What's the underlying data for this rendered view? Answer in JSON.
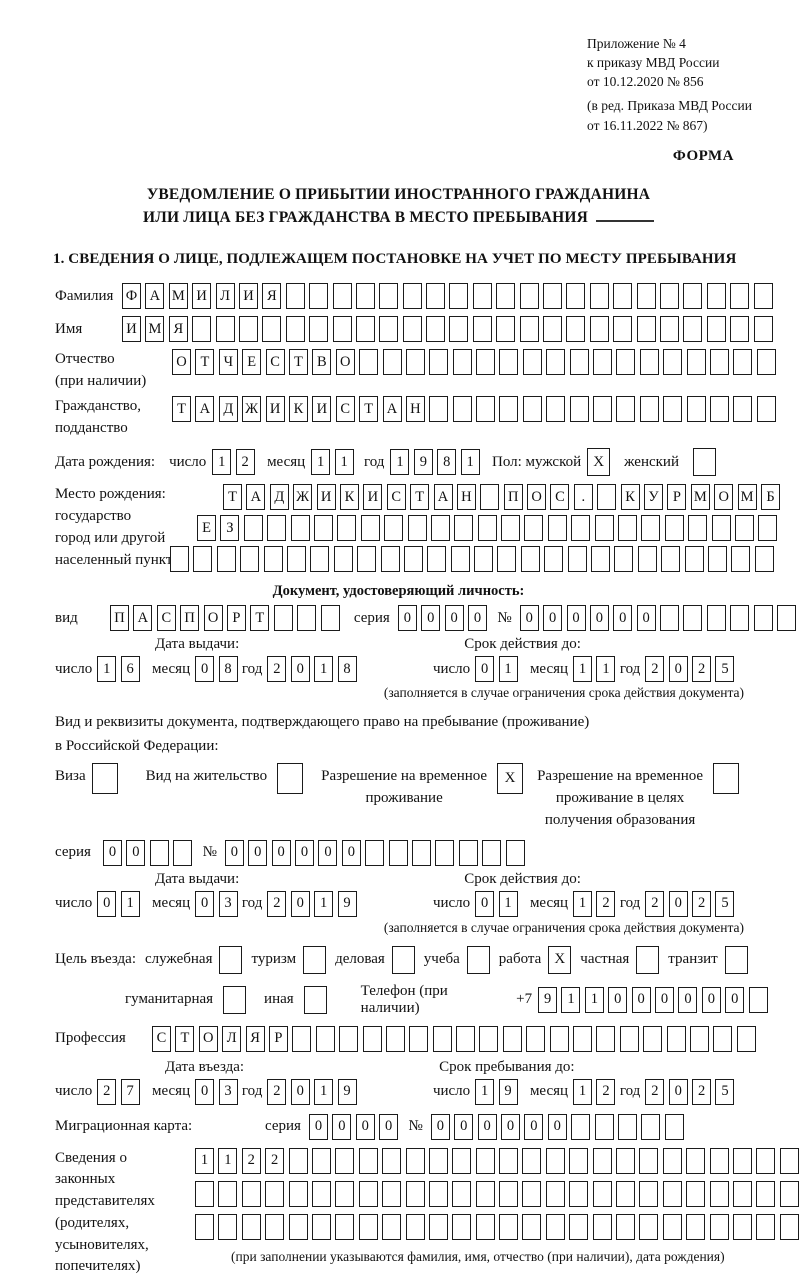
{
  "header": {
    "appendix_line1": "Приложение № 4",
    "appendix_line2": "к приказу МВД России",
    "appendix_line3": "от 10.12.2020 № 856",
    "amendment_line1": "(в ред. Приказа МВД России",
    "amendment_line2": "от 16.11.2022 № 867)",
    "form_label": "ФОРМА"
  },
  "title": {
    "line1": "УВЕДОМЛЕНИЕ О ПРИБЫТИИ ИНОСТРАННОГО ГРАЖДАНИНА",
    "line2": "ИЛИ ЛИЦА БЕЗ ГРАЖДАНСТВА В МЕСТО ПРЕБЫВАНИЯ"
  },
  "section1_heading": "1. СВЕДЕНИЯ О ЛИЦЕ, ПОДЛЕЖАЩЕМ ПОСТАНОВКЕ НА УЧЕТ ПО МЕСТУ ПРЕБЫВАНИЯ",
  "labels": {
    "day": "число",
    "month": "месяц",
    "year": "год",
    "series": "серия",
    "number": "№"
  },
  "person": {
    "surname_label": "Фамилия",
    "surname": "ФАМИЛИЯ",
    "given_name_label": "Имя",
    "given_name": "ИМЯ",
    "patronymic_label": "Отчество",
    "patronymic_note": "(при наличии)",
    "patronymic": "ОТЧЕСТВО",
    "citizenship_label1": "Гражданство,",
    "citizenship_label2": "подданство",
    "citizenship": "ТАДЖИКИСТАН",
    "birth_date_label": "Дата рождения:",
    "birth_day": "12",
    "birth_month": "11",
    "birth_year": "1981",
    "sex_label": "Пол: мужской",
    "sex_male": "X",
    "sex_female_label": "женский",
    "sex_female": "",
    "birth_place_label1": "Место рождения:",
    "birth_place_label2": "государство",
    "birth_place_label3": "город или другой",
    "birth_place_label4": "населенный пункт",
    "birth_place_row1": "ТАДЖИКИСТАН ПОС. КУРМОМБ",
    "birth_place_row2": "ЕЗ",
    "birth_place_row3": ""
  },
  "identity_doc": {
    "heading": "Документ, удостоверяющий личность:",
    "kind_label": "вид",
    "kind": "ПАСПОРТ",
    "series": "0000",
    "number": "000000",
    "issue_header": "Дата выдачи:",
    "issue_day": "16",
    "issue_month": "08",
    "issue_year": "2018",
    "expiry_header": "Срок действия до:",
    "expiry_day": "01",
    "expiry_month": "11",
    "expiry_year": "2025",
    "note": "(заполняется в случае ограничения срока действия документа)"
  },
  "residence_doc": {
    "intro_line1": "Вид и реквизиты документа, подтверждающего право на пребывание (проживание)",
    "intro_line2": "в Российской Федерации:",
    "visa_label": "Виза",
    "visa": "",
    "residence_permit_label": "Вид на жительство",
    "residence_permit": "",
    "temp_permit_label1": "Разрешение на временное",
    "temp_permit_label2": "проживание",
    "temp_permit": "X",
    "edu_permit_label1": "Разрешение на временное",
    "edu_permit_label2": "проживание в целях",
    "edu_permit_label3": "получения образования",
    "edu_permit": "",
    "series": "00",
    "number": "000000",
    "issue_header": "Дата выдачи:",
    "issue_day": "01",
    "issue_month": "03",
    "issue_year": "2019",
    "expiry_header": "Срок действия до:",
    "expiry_day": "01",
    "expiry_month": "12",
    "expiry_year": "2025",
    "note": "(заполняется в случае ограничения срока действия документа)"
  },
  "visit": {
    "purpose_label": "Цель въезда:",
    "opt_official_label": "служебная",
    "opt_official": "",
    "opt_tourism_label": "туризм",
    "opt_tourism": "",
    "opt_business_label": "деловая",
    "opt_business": "",
    "opt_study_label": "учеба",
    "opt_study": "",
    "opt_work_label": "работа",
    "opt_work": "X",
    "opt_private_label": "частная",
    "opt_private": "",
    "opt_transit_label": "транзит",
    "opt_transit": "",
    "opt_humanitarian_label": "гуманитарная",
    "opt_humanitarian": "",
    "opt_other_label": "иная",
    "opt_other": "",
    "phone_label": "Телефон (при наличии)",
    "phone_prefix": "+7",
    "phone": "911000000",
    "profession_label": "Профессия",
    "profession": "СТОЛЯР",
    "entry_header": "Дата въезда:",
    "entry_day": "27",
    "entry_month": "03",
    "entry_year": "2019",
    "stay_header": "Срок пребывания до:",
    "stay_day": "19",
    "stay_month": "12",
    "stay_year": "2025",
    "migration_card_label": "Миграционная карта:",
    "mc_series": "0000",
    "mc_number": "000000"
  },
  "representatives": {
    "label_line1": "Сведения о",
    "label_line2": "законных",
    "label_line3": "представителях",
    "label_line4": "(родителях,",
    "label_line5": "усыновителях,",
    "label_line6": "попечителях)",
    "row1": "1122",
    "row2": "",
    "row3": "",
    "note": "(при заполнении указываются фамилия, имя, отчество (при наличии), дата рождения)"
  }
}
